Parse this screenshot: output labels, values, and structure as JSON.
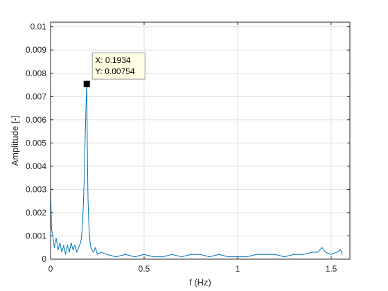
{
  "chart_data": {
    "type": "line",
    "title": "",
    "xlabel": "f (Hz)",
    "ylabel": "Amplitude [-]",
    "xlim": [
      0,
      1.6
    ],
    "ylim": [
      0,
      0.0102
    ],
    "xticks": [
      0,
      0.5,
      1,
      1.5
    ],
    "xtick_labels": [
      "0",
      "0.5",
      "1",
      "1.5"
    ],
    "yticks": [
      0,
      0.001,
      0.002,
      0.003,
      0.004,
      0.005,
      0.006,
      0.007,
      0.008,
      0.009,
      0.01
    ],
    "ytick_labels": [
      "0",
      "0.001",
      "0.002",
      "0.003",
      "0.004",
      "0.005",
      "0.006",
      "0.007",
      "0.008",
      "0.009",
      "0.01"
    ],
    "grid": true,
    "series": [
      {
        "color": "#0072bd",
        "x": [
          0,
          0.005,
          0.01,
          0.015,
          0.02,
          0.03,
          0.04,
          0.05,
          0.06,
          0.07,
          0.08,
          0.09,
          0.1,
          0.11,
          0.12,
          0.13,
          0.14,
          0.15,
          0.16,
          0.165,
          0.17,
          0.175,
          0.18,
          0.185,
          0.19,
          0.1934,
          0.197,
          0.2,
          0.205,
          0.21,
          0.215,
          0.22,
          0.23,
          0.24,
          0.25,
          0.27,
          0.3,
          0.35,
          0.4,
          0.45,
          0.5,
          0.55,
          0.6,
          0.65,
          0.7,
          0.75,
          0.8,
          0.85,
          0.9,
          0.95,
          1.0,
          1.05,
          1.1,
          1.15,
          1.2,
          1.25,
          1.3,
          1.35,
          1.4,
          1.43,
          1.45,
          1.47,
          1.5,
          1.53,
          1.55,
          1.56
        ],
        "y": [
          0.0031,
          0.0013,
          0.0011,
          0.0008,
          0.0005,
          0.0009,
          0.0004,
          0.0007,
          0.0003,
          0.0006,
          0.0002,
          0.0006,
          0.0003,
          0.0007,
          0.0004,
          0.0006,
          0.0003,
          0.0005,
          0.0007,
          0.0009,
          0.0015,
          0.0023,
          0.0035,
          0.0052,
          0.0068,
          0.00754,
          0.0045,
          0.0026,
          0.0014,
          0.0008,
          0.0005,
          0.0004,
          0.0003,
          0.0005,
          0.0002,
          0.0003,
          0.0002,
          0.0001,
          0.0002,
          0.0001,
          0.0002,
          0.0001,
          0.0001,
          0.0002,
          0.0001,
          0.0002,
          0.0002,
          0.0001,
          0.0002,
          0.0001,
          0.0001,
          0.0001,
          0.0002,
          0.0002,
          0.0002,
          0.0001,
          0.0002,
          0.0002,
          0.0003,
          0.0003,
          0.0005,
          0.0003,
          0.0002,
          0.0003,
          0.0004,
          0.0002
        ]
      }
    ],
    "datatip": {
      "x": 0.1934,
      "y": 0.00754,
      "x_text": "X: 0.1934",
      "y_text": "Y: 0.00754"
    }
  }
}
